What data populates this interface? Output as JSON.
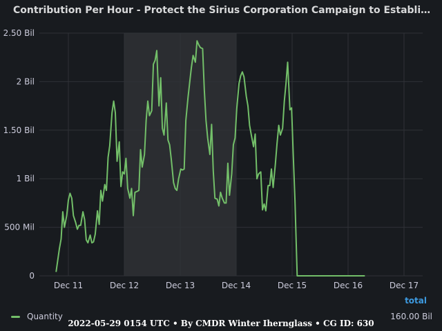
{
  "chart_data": {
    "type": "line",
    "title": "Contribution Per Hour - Protect the Sirius Corporation Campaign to Establish Marlinist Coloni…",
    "xlabel": "",
    "ylabel": "",
    "x_ticks": [
      "Dec 11",
      "Dec 12",
      "Dec 13",
      "Dec 14",
      "Dec 15",
      "Dec 16",
      "Dec 17"
    ],
    "y_ticks": [
      "0",
      "500 Mil",
      "1 Bil",
      "1.50 Bil",
      "2 Bil",
      "2.50 Bil"
    ],
    "ylim": [
      0,
      2500000000
    ],
    "x_range_days": [
      10.42,
      11.24
    ],
    "highlight_region": {
      "from_day": 12.0,
      "to_day": 14.0
    },
    "grid": true,
    "legend_placement": "bottom",
    "line_color": "#73bf69",
    "series": [
      {
        "name": "Quantity",
        "unit_x": "hour",
        "points": [
          [
            10.78,
            0.04
          ],
          [
            10.84,
            0.28
          ],
          [
            10.87,
            0.38
          ],
          [
            10.9,
            0.66
          ],
          [
            10.93,
            0.5
          ],
          [
            10.97,
            0.62
          ],
          [
            11.0,
            0.78
          ],
          [
            11.03,
            0.85
          ],
          [
            11.06,
            0.8
          ],
          [
            11.09,
            0.62
          ],
          [
            11.13,
            0.55
          ],
          [
            11.16,
            0.48
          ],
          [
            11.19,
            0.52
          ],
          [
            11.22,
            0.52
          ],
          [
            11.26,
            0.66
          ],
          [
            11.29,
            0.58
          ],
          [
            11.32,
            0.37
          ],
          [
            11.35,
            0.34
          ],
          [
            11.39,
            0.42
          ],
          [
            11.42,
            0.34
          ],
          [
            11.45,
            0.35
          ],
          [
            11.48,
            0.43
          ],
          [
            11.52,
            0.67
          ],
          [
            11.55,
            0.53
          ],
          [
            11.58,
            0.88
          ],
          [
            11.61,
            0.77
          ],
          [
            11.65,
            0.94
          ],
          [
            11.68,
            0.88
          ],
          [
            11.71,
            1.22
          ],
          [
            11.74,
            1.34
          ],
          [
            11.78,
            1.68
          ],
          [
            11.81,
            1.8
          ],
          [
            11.84,
            1.68
          ],
          [
            11.87,
            1.18
          ],
          [
            11.91,
            1.38
          ],
          [
            11.94,
            0.92
          ],
          [
            11.97,
            1.07
          ],
          [
            12.0,
            1.05
          ],
          [
            12.03,
            1.21
          ],
          [
            12.06,
            0.9
          ],
          [
            12.1,
            0.8
          ],
          [
            12.13,
            0.9
          ],
          [
            12.16,
            0.62
          ],
          [
            12.19,
            0.86
          ],
          [
            12.23,
            0.87
          ],
          [
            12.26,
            0.88
          ],
          [
            12.29,
            1.3
          ],
          [
            12.32,
            1.12
          ],
          [
            12.36,
            1.25
          ],
          [
            12.39,
            1.6
          ],
          [
            12.42,
            1.8
          ],
          [
            12.45,
            1.65
          ],
          [
            12.49,
            1.7
          ],
          [
            12.52,
            2.18
          ],
          [
            12.55,
            2.22
          ],
          [
            12.58,
            2.32
          ],
          [
            12.62,
            1.75
          ],
          [
            12.65,
            2.04
          ],
          [
            12.68,
            1.52
          ],
          [
            12.71,
            1.45
          ],
          [
            12.75,
            1.78
          ],
          [
            12.78,
            1.4
          ],
          [
            12.81,
            1.35
          ],
          [
            12.84,
            1.2
          ],
          [
            12.88,
            0.96
          ],
          [
            12.91,
            0.9
          ],
          [
            12.94,
            0.88
          ],
          [
            12.97,
            1.0
          ],
          [
            13.01,
            1.1
          ],
          [
            13.04,
            1.09
          ],
          [
            13.07,
            1.1
          ],
          [
            13.1,
            1.6
          ],
          [
            13.14,
            1.84
          ],
          [
            13.17,
            2.0
          ],
          [
            13.2,
            2.15
          ],
          [
            13.23,
            2.27
          ],
          [
            13.27,
            2.2
          ],
          [
            13.3,
            2.42
          ],
          [
            13.33,
            2.38
          ],
          [
            13.36,
            2.35
          ],
          [
            13.4,
            2.34
          ],
          [
            13.43,
            1.92
          ],
          [
            13.46,
            1.6
          ],
          [
            13.49,
            1.42
          ],
          [
            13.53,
            1.25
          ],
          [
            13.56,
            1.56
          ],
          [
            13.59,
            1.08
          ],
          [
            13.62,
            0.8
          ],
          [
            13.66,
            0.79
          ],
          [
            13.69,
            0.72
          ],
          [
            13.72,
            0.86
          ],
          [
            13.75,
            0.8
          ],
          [
            13.79,
            0.75
          ],
          [
            13.82,
            0.75
          ],
          [
            13.85,
            1.16
          ],
          [
            13.88,
            0.83
          ],
          [
            13.92,
            1.05
          ],
          [
            13.95,
            1.35
          ],
          [
            13.98,
            1.42
          ],
          [
            14.01,
            1.72
          ],
          [
            14.05,
            1.98
          ],
          [
            14.08,
            2.06
          ],
          [
            14.11,
            2.1
          ],
          [
            14.14,
            2.05
          ],
          [
            14.18,
            1.85
          ],
          [
            14.21,
            1.75
          ],
          [
            14.24,
            1.55
          ],
          [
            14.27,
            1.45
          ],
          [
            14.31,
            1.33
          ],
          [
            14.34,
            1.46
          ],
          [
            14.37,
            1.0
          ],
          [
            14.4,
            1.05
          ],
          [
            14.44,
            1.07
          ],
          [
            14.47,
            0.68
          ],
          [
            14.5,
            0.74
          ],
          [
            14.53,
            0.67
          ],
          [
            14.57,
            0.93
          ],
          [
            14.6,
            0.93
          ],
          [
            14.63,
            1.1
          ],
          [
            14.66,
            0.91
          ],
          [
            14.7,
            1.15
          ],
          [
            14.73,
            1.36
          ],
          [
            14.76,
            1.55
          ],
          [
            14.79,
            1.45
          ],
          [
            14.83,
            1.52
          ],
          [
            14.86,
            1.8
          ],
          [
            14.89,
            1.98
          ],
          [
            14.92,
            2.2
          ],
          [
            14.96,
            1.71
          ],
          [
            14.99,
            1.73
          ],
          [
            15.02,
            1.25
          ],
          [
            15.05,
            0.78
          ],
          [
            15.09,
            0.0
          ],
          [
            15.3,
            0.0
          ],
          [
            15.6,
            0.0
          ],
          [
            15.9,
            0.0
          ],
          [
            16.2,
            0.0
          ],
          [
            16.3,
            0.0
          ]
        ]
      }
    ]
  },
  "legend": {
    "header": "total",
    "series_label": "Quantity",
    "series_value": "160.00 Bil"
  },
  "footer": "2022-05-29 0154 UTC • By CMDR Winter Iherngl­ass • CG ID: 630"
}
